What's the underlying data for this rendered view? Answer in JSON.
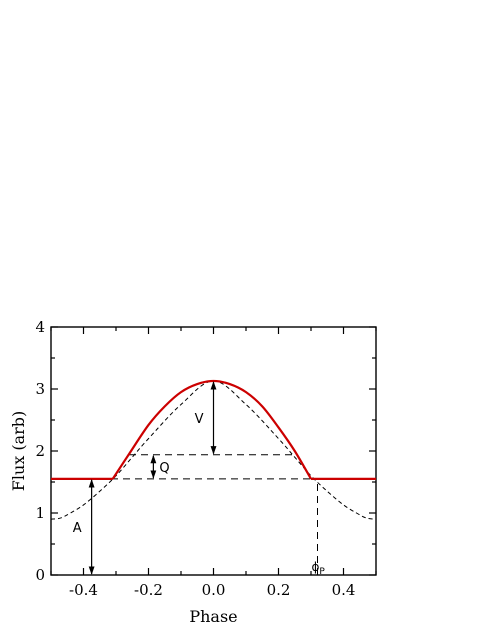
{
  "chart_data": {
    "type": "line",
    "title": "",
    "xlabel": "Phase",
    "ylabel": "Flux (arb)",
    "xlim": [
      -0.5,
      0.5
    ],
    "ylim": [
      0,
      4
    ],
    "xticks": [
      -0.4,
      -0.2,
      0.0,
      0.2,
      0.4
    ],
    "xtick_labels": [
      "-0.4",
      "-0.2",
      "0.0",
      "0.2",
      "0.4"
    ],
    "yticks": [
      0,
      1,
      2,
      3,
      4
    ],
    "ytick_labels": [
      "0",
      "1",
      "2",
      "3",
      "4"
    ],
    "grid": false,
    "series": [
      {
        "style": "solid",
        "color": "#cc0000",
        "points": [
          [
            -0.5,
            1.55
          ],
          [
            -0.31,
            1.55
          ],
          [
            -0.26,
            1.95
          ],
          [
            -0.2,
            2.42
          ],
          [
            -0.15,
            2.72
          ],
          [
            -0.1,
            2.95
          ],
          [
            -0.05,
            3.08
          ],
          [
            0.0,
            3.13
          ],
          [
            0.05,
            3.08
          ],
          [
            0.1,
            2.95
          ],
          [
            0.15,
            2.72
          ],
          [
            0.2,
            2.38
          ],
          [
            0.25,
            2.0
          ],
          [
            0.3,
            1.55
          ],
          [
            0.5,
            1.55
          ]
        ]
      },
      {
        "style": "dashed",
        "color": "#000000",
        "points": [
          [
            -0.5,
            0.9
          ],
          [
            -0.47,
            0.92
          ],
          [
            -0.44,
            1.0
          ],
          [
            -0.4,
            1.13
          ],
          [
            -0.35,
            1.35
          ],
          [
            -0.3,
            1.6
          ],
          [
            -0.25,
            1.9
          ],
          [
            -0.2,
            2.2
          ],
          [
            -0.1,
            2.75
          ],
          [
            0.0,
            3.13
          ],
          [
            0.1,
            2.75
          ],
          [
            0.2,
            2.2
          ],
          [
            0.25,
            1.9
          ],
          [
            0.3,
            1.6
          ],
          [
            0.35,
            1.35
          ],
          [
            0.4,
            1.13
          ],
          [
            0.44,
            1.0
          ],
          [
            0.47,
            0.92
          ],
          [
            0.5,
            0.9
          ]
        ]
      }
    ],
    "reference_lines": [
      {
        "y": 1.55,
        "x_range": [
          -0.5,
          0.5
        ]
      },
      {
        "y": 1.94,
        "x_range": [
          -0.26,
          0.26
        ]
      },
      {
        "x": 0.32,
        "y_range": [
          0,
          1.55
        ]
      }
    ],
    "annotations": [
      {
        "label": "V",
        "x": 0.0,
        "y_from": 1.94,
        "y_to": 3.13
      },
      {
        "label": "Q",
        "x": -0.185,
        "y_from": 1.55,
        "y_to": 1.94
      },
      {
        "label": "A",
        "x": -0.375,
        "y_from": 0.0,
        "y_to": 1.55
      },
      {
        "label": "ϕ",
        "sub": "P",
        "x": 0.32
      }
    ]
  }
}
